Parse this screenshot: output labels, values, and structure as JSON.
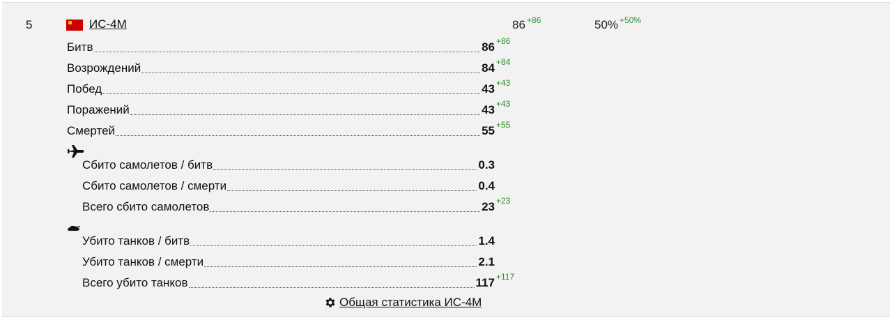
{
  "header": {
    "rank": "5",
    "vehicle_name": "ИС-4М",
    "battles": "86",
    "battles_delta": "+86",
    "winrate": "50%",
    "winrate_delta": "+50%"
  },
  "stats": [
    {
      "label": "Битв",
      "value": "86",
      "delta": "+86"
    },
    {
      "label": "Возрождений",
      "value": "84",
      "delta": "+84"
    },
    {
      "label": "Побед",
      "value": "43",
      "delta": "+43"
    },
    {
      "label": "Поражений",
      "value": "43",
      "delta": "+43"
    },
    {
      "label": "Смертей",
      "value": "55",
      "delta": "+55"
    }
  ],
  "air": [
    {
      "label": "Сбито самолетов / битв",
      "value": "0.3",
      "delta": ""
    },
    {
      "label": "Сбито самолетов / смерти",
      "value": "0.4",
      "delta": ""
    },
    {
      "label": "Всего сбито самолетов",
      "value": "23",
      "delta": "+23"
    }
  ],
  "ground": [
    {
      "label": "Убито танков / битв",
      "value": "1.4",
      "delta": ""
    },
    {
      "label": "Убито танков / смерти",
      "value": "2.1",
      "delta": ""
    },
    {
      "label": "Всего убито танков",
      "value": "117",
      "delta": "+117"
    }
  ],
  "footer": {
    "link_text": "Общая статистика ИС-4М"
  },
  "icons": {
    "flag": "ussr-flag-icon",
    "air": "airplane-icon",
    "ground": "tank-icon",
    "footer": "gear-icon"
  },
  "colors": {
    "delta": "#2e8b2e",
    "flag": "#cc0000"
  }
}
